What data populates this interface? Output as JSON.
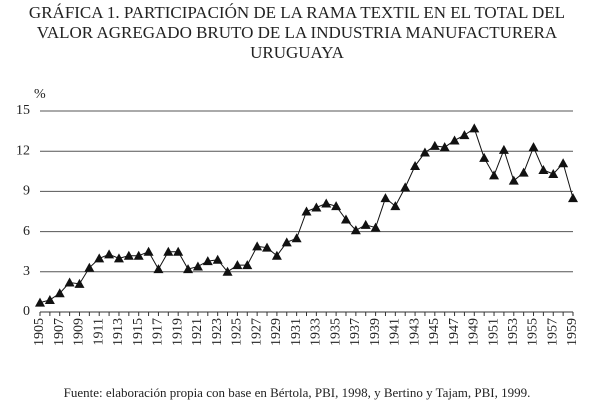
{
  "chart_data": {
    "type": "line",
    "title": [
      "GRÁFICA 1. PARTICIPACIÓN DE LA RAMA TEXTIL EN EL TOTAL DEL",
      "VALOR AGREGADO BRUTO DE LA INDUSTRIA MANUFACTURERA",
      "URUGUAYA"
    ],
    "y_label": "%",
    "source": "Fuente: elaboración propia con base en Bértola, PBI, 1998, y Bertino y Tajam, PBI, 1999.",
    "categories": [
      "1905",
      null,
      "1907",
      null,
      "1909",
      null,
      "1911",
      null,
      "1913",
      null,
      "1915",
      null,
      "1917",
      null,
      "1919",
      null,
      "1921",
      null,
      "1923",
      null,
      "1925",
      null,
      "1927",
      null,
      "1929",
      null,
      "1931",
      null,
      "1933",
      null,
      "1935",
      null,
      "1937",
      null,
      "1939",
      null,
      "1941",
      null,
      "1943",
      null,
      "1945",
      null,
      "1947",
      null,
      "1949",
      null,
      "1951",
      null,
      "1953",
      null,
      "1955",
      null,
      "1957",
      null,
      "1959"
    ],
    "series": [
      {
        "name": null,
        "color": "#111111",
        "values": [
          0.7,
          0.9,
          1.4,
          2.2,
          2.1,
          3.3,
          4.0,
          4.3,
          4.0,
          4.2,
          4.2,
          4.5,
          3.2,
          4.5,
          4.5,
          3.2,
          3.4,
          3.8,
          3.9,
          3.0,
          3.5,
          3.5,
          4.9,
          4.8,
          4.2,
          5.2,
          5.5,
          7.5,
          7.8,
          8.1,
          7.9,
          6.9,
          6.1,
          6.5,
          6.3,
          8.5,
          7.9,
          9.3,
          10.9,
          11.9,
          12.4,
          12.3,
          12.8,
          13.2,
          13.7,
          11.5,
          10.2,
          12.1,
          9.8,
          10.4,
          12.3,
          10.6,
          10.3,
          11.1,
          8.5
        ]
      }
    ],
    "ylim": [
      0,
      15
    ],
    "yticks": [
      0,
      3,
      6,
      9,
      12,
      15
    ],
    "grid": true
  }
}
